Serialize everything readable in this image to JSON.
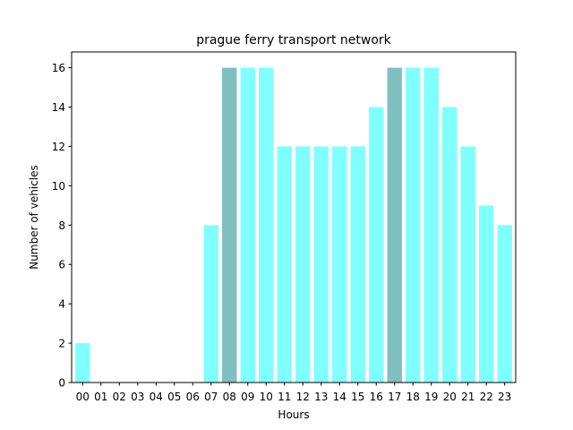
{
  "chart_data": {
    "type": "bar",
    "title": "prague ferry transport network",
    "xlabel": "Hours",
    "ylabel": "Number of vehicles",
    "ylim": [
      0,
      16.8
    ],
    "yticks": [
      0,
      2,
      4,
      6,
      8,
      10,
      12,
      14,
      16
    ],
    "categories": [
      "00",
      "01",
      "02",
      "03",
      "04",
      "05",
      "06",
      "07",
      "08",
      "09",
      "10",
      "11",
      "12",
      "13",
      "14",
      "15",
      "16",
      "17",
      "18",
      "19",
      "20",
      "21",
      "22",
      "23"
    ],
    "values": [
      2,
      0,
      0,
      0,
      0,
      0,
      0,
      8,
      16,
      16,
      16,
      12,
      12,
      12,
      12,
      12,
      14,
      16,
      16,
      16,
      14,
      12,
      9,
      8
    ],
    "highlighted_categories": [
      "08",
      "17"
    ],
    "colors": {
      "bar": "#80ffff",
      "highlight": "#80bfbf"
    },
    "grid": false,
    "legend": "none"
  }
}
